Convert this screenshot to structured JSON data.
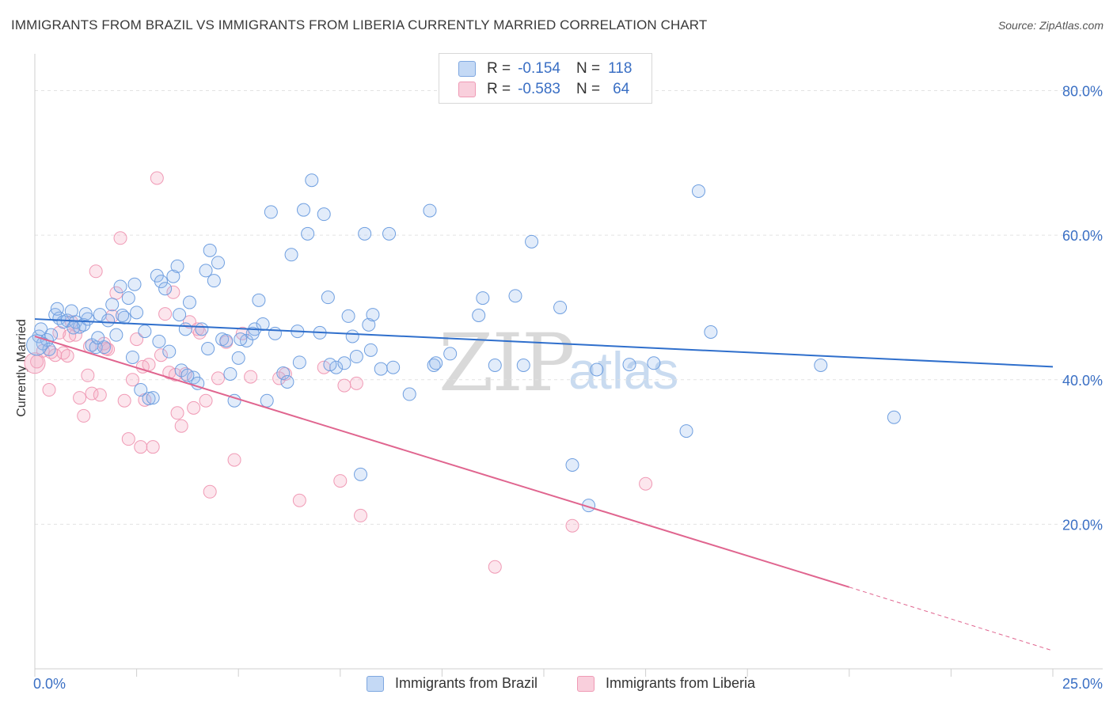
{
  "header": {
    "title": "IMMIGRANTS FROM BRAZIL VS IMMIGRANTS FROM LIBERIA CURRENTLY MARRIED CORRELATION CHART",
    "source": "Source: ZipAtlas.com"
  },
  "legend": {
    "rows": [
      {
        "r_label": "R =",
        "r_value": "-0.154",
        "n_label": "N =",
        "n_value": "118",
        "color": "#a9c8f0"
      },
      {
        "r_label": "R =",
        "r_value": "-0.583",
        "n_label": "N =",
        "n_value": "64",
        "color": "#f6b8ca"
      }
    ]
  },
  "bottom_legend": {
    "brazil": "Immigrants from Brazil",
    "liberia": "Immigrants from Liberia"
  },
  "watermark": {
    "zip": "ZIP",
    "atlas": "atlas"
  },
  "chart_data": {
    "type": "scatter",
    "title": "IMMIGRANTS FROM BRAZIL VS IMMIGRANTS FROM LIBERIA CURRENTLY MARRIED CORRELATION CHART",
    "ylabel": "Currently Married",
    "xlim": [
      0,
      25
    ],
    "ylim": [
      0,
      80
    ],
    "x_tick_labels": [
      "0.0%",
      "25.0%"
    ],
    "y_ticks": [
      20,
      40,
      60,
      80
    ],
    "y_tick_labels": [
      "20.0%",
      "40.0%",
      "60.0%",
      "80.0%"
    ],
    "grid": true,
    "legend_position": "top-center",
    "colors": {
      "brazil": "#6f9fe0",
      "brazil_line": "#2f6fcc",
      "liberia": "#f09ab5",
      "liberia_line": "#e0658f",
      "tick_label": "#3a6fc4"
    },
    "series": [
      {
        "name": "Immigrants from Brazil",
        "r": -0.154,
        "n": 118,
        "trend": {
          "x": [
            0,
            25
          ],
          "y": [
            48.4,
            41.8
          ]
        },
        "points": [
          [
            0.1,
            46.0
          ],
          [
            0.2,
            45.0
          ],
          [
            0.3,
            45.5
          ],
          [
            0.4,
            46.2
          ],
          [
            0.5,
            49.0
          ],
          [
            0.6,
            48.5
          ],
          [
            0.7,
            48.0
          ],
          [
            0.8,
            48.2
          ],
          [
            0.9,
            49.5
          ],
          [
            1.0,
            48.0
          ],
          [
            1.1,
            47.3
          ],
          [
            1.2,
            47.6
          ],
          [
            1.3,
            48.4
          ],
          [
            1.4,
            44.8
          ],
          [
            1.5,
            44.5
          ],
          [
            1.6,
            49.0
          ],
          [
            1.7,
            44.5
          ],
          [
            1.8,
            48.2
          ],
          [
            1.9,
            50.4
          ],
          [
            2.0,
            46.2
          ],
          [
            2.1,
            52.9
          ],
          [
            2.2,
            48.6
          ],
          [
            2.3,
            51.3
          ],
          [
            2.4,
            43.1
          ],
          [
            2.5,
            49.3
          ],
          [
            2.6,
            38.6
          ],
          [
            2.7,
            46.7
          ],
          [
            2.8,
            37.4
          ],
          [
            2.9,
            37.5
          ],
          [
            3.0,
            54.4
          ],
          [
            3.1,
            53.6
          ],
          [
            3.2,
            52.6
          ],
          [
            3.3,
            43.9
          ],
          [
            3.4,
            54.3
          ],
          [
            3.5,
            55.7
          ],
          [
            3.6,
            41.3
          ],
          [
            3.7,
            47.0
          ],
          [
            3.8,
            50.7
          ],
          [
            3.9,
            40.3
          ],
          [
            4.0,
            39.5
          ],
          [
            4.1,
            47.0
          ],
          [
            4.2,
            55.1
          ],
          [
            4.3,
            57.9
          ],
          [
            4.4,
            53.7
          ],
          [
            4.5,
            56.2
          ],
          [
            4.6,
            45.6
          ],
          [
            4.7,
            45.4
          ],
          [
            4.8,
            40.8
          ],
          [
            4.9,
            37.1
          ],
          [
            5.0,
            43.0
          ],
          [
            5.2,
            45.4
          ],
          [
            5.4,
            47.0
          ],
          [
            5.5,
            51.0
          ],
          [
            5.6,
            47.7
          ],
          [
            5.7,
            37.1
          ],
          [
            5.8,
            63.2
          ],
          [
            5.9,
            46.4
          ],
          [
            6.1,
            40.9
          ],
          [
            6.2,
            39.7
          ],
          [
            6.3,
            57.3
          ],
          [
            6.5,
            42.4
          ],
          [
            6.6,
            63.5
          ],
          [
            6.7,
            60.2
          ],
          [
            6.8,
            67.6
          ],
          [
            7.0,
            46.5
          ],
          [
            7.1,
            62.9
          ],
          [
            7.2,
            51.4
          ],
          [
            7.4,
            41.7
          ],
          [
            7.6,
            42.3
          ],
          [
            7.7,
            48.8
          ],
          [
            7.8,
            46.0
          ],
          [
            7.9,
            43.2
          ],
          [
            8.0,
            26.9
          ],
          [
            8.1,
            60.2
          ],
          [
            8.2,
            47.6
          ],
          [
            8.3,
            49.0
          ],
          [
            8.5,
            41.5
          ],
          [
            8.7,
            60.2
          ],
          [
            8.8,
            41.7
          ],
          [
            9.2,
            38.0
          ],
          [
            9.7,
            63.4
          ],
          [
            9.8,
            42.0
          ],
          [
            10.2,
            43.6
          ],
          [
            10.9,
            48.9
          ],
          [
            11.0,
            51.3
          ],
          [
            11.3,
            42.0
          ],
          [
            11.8,
            51.6
          ],
          [
            12.0,
            42.0
          ],
          [
            12.2,
            59.1
          ],
          [
            12.9,
            50.0
          ],
          [
            13.2,
            28.2
          ],
          [
            13.6,
            22.6
          ],
          [
            13.8,
            41.4
          ],
          [
            14.6,
            42.1
          ],
          [
            15.2,
            42.3
          ],
          [
            16.0,
            32.9
          ],
          [
            16.3,
            66.1
          ],
          [
            16.6,
            46.6
          ],
          [
            19.3,
            42.0
          ],
          [
            21.1,
            34.8
          ],
          [
            0.15,
            47.0
          ],
          [
            0.35,
            44.2
          ],
          [
            0.55,
            49.8
          ],
          [
            0.95,
            47.2
          ],
          [
            1.25,
            49.1
          ],
          [
            2.15,
            48.9
          ],
          [
            2.45,
            53.2
          ],
          [
            3.05,
            45.3
          ],
          [
            3.55,
            49.0
          ],
          [
            4.25,
            44.3
          ],
          [
            5.05,
            45.6
          ],
          [
            5.35,
            46.4
          ],
          [
            6.45,
            46.7
          ],
          [
            7.25,
            42.1
          ],
          [
            8.25,
            44.1
          ],
          [
            9.85,
            42.3
          ],
          [
            3.75,
            40.6
          ],
          [
            1.55,
            45.8
          ]
        ]
      },
      {
        "name": "Immigrants from Liberia",
        "r": -0.583,
        "n": 64,
        "trend": {
          "x": [
            0,
            20
          ],
          "y": [
            46.0,
            11.3
          ]
        },
        "trend_dashed": {
          "x": [
            20,
            25
          ],
          "y": [
            11.3,
            2.5
          ]
        },
        "points": [
          [
            0.05,
            42.5
          ],
          [
            0.2,
            44.0
          ],
          [
            0.35,
            38.6
          ],
          [
            0.5,
            43.4
          ],
          [
            0.6,
            46.5
          ],
          [
            0.7,
            43.7
          ],
          [
            0.8,
            43.3
          ],
          [
            0.9,
            48.0
          ],
          [
            1.0,
            46.2
          ],
          [
            1.1,
            37.5
          ],
          [
            1.2,
            35.0
          ],
          [
            1.3,
            40.6
          ],
          [
            1.4,
            38.1
          ],
          [
            1.5,
            55.0
          ],
          [
            1.6,
            37.9
          ],
          [
            1.7,
            45.0
          ],
          [
            1.8,
            44.2
          ],
          [
            1.9,
            48.8
          ],
          [
            2.0,
            52.0
          ],
          [
            2.1,
            59.6
          ],
          [
            2.2,
            37.1
          ],
          [
            2.3,
            31.8
          ],
          [
            2.4,
            40.0
          ],
          [
            2.5,
            45.6
          ],
          [
            2.6,
            30.7
          ],
          [
            2.7,
            37.2
          ],
          [
            2.8,
            42.1
          ],
          [
            2.9,
            30.7
          ],
          [
            3.0,
            67.9
          ],
          [
            3.1,
            43.4
          ],
          [
            3.2,
            49.1
          ],
          [
            3.3,
            41.0
          ],
          [
            3.4,
            52.1
          ],
          [
            3.5,
            35.4
          ],
          [
            3.6,
            33.6
          ],
          [
            3.7,
            40.8
          ],
          [
            3.8,
            48.0
          ],
          [
            3.9,
            36.1
          ],
          [
            4.0,
            47.0
          ],
          [
            4.2,
            37.1
          ],
          [
            4.3,
            24.5
          ],
          [
            4.5,
            40.2
          ],
          [
            4.7,
            45.2
          ],
          [
            4.9,
            28.9
          ],
          [
            5.1,
            46.4
          ],
          [
            5.3,
            40.4
          ],
          [
            6.0,
            40.2
          ],
          [
            6.5,
            23.3
          ],
          [
            7.1,
            41.7
          ],
          [
            7.5,
            26.0
          ],
          [
            7.6,
            39.2
          ],
          [
            7.9,
            39.5
          ],
          [
            8.0,
            21.2
          ],
          [
            11.3,
            14.1
          ],
          [
            13.2,
            19.8
          ],
          [
            15.0,
            25.6
          ],
          [
            0.4,
            43.8
          ],
          [
            0.85,
            46.1
          ],
          [
            1.35,
            44.6
          ],
          [
            1.75,
            44.3
          ],
          [
            2.65,
            41.8
          ],
          [
            3.45,
            40.7
          ],
          [
            4.05,
            46.5
          ],
          [
            6.15,
            40.8
          ]
        ]
      }
    ]
  }
}
